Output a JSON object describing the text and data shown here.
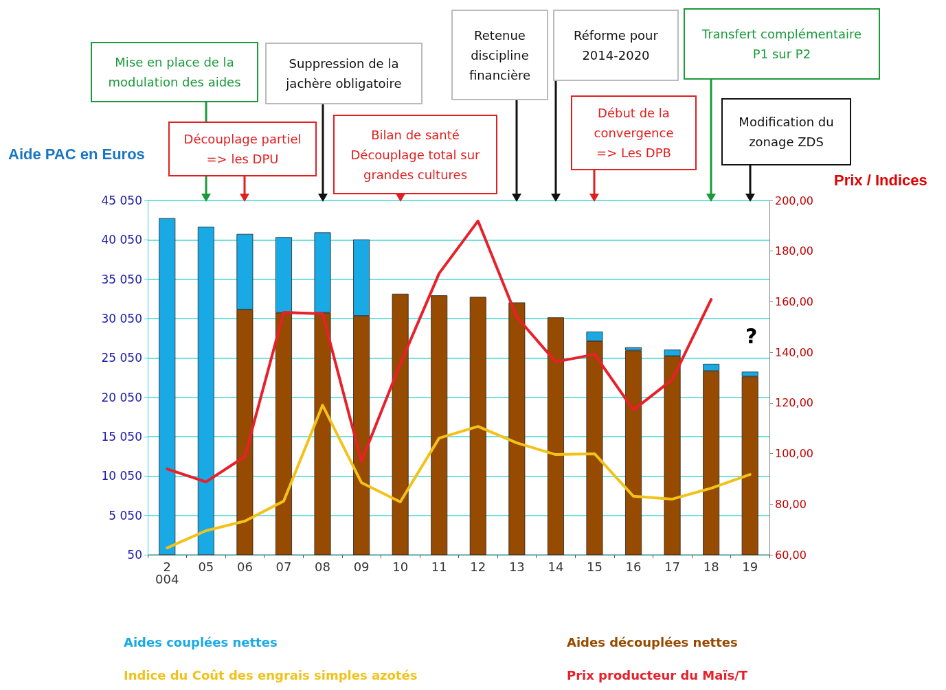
{
  "chart_data": {
    "type": "bar",
    "stacked": true,
    "ylabel": "Aide PAC en Euros",
    "y2label": "Prix / Indices",
    "categories": [
      "2 004",
      "05",
      "06",
      "07",
      "08",
      "09",
      "10",
      "11",
      "12",
      "13",
      "14",
      "15",
      "16",
      "17",
      "18",
      "19"
    ],
    "series": [
      {
        "name": "Aides découplées nettes",
        "color": "#964b00",
        "values": [
          null,
          null,
          31200,
          30800,
          30800,
          30400,
          33200,
          33000,
          32800,
          32100,
          30200,
          27200,
          26000,
          25300,
          23400,
          22700
        ]
      },
      {
        "name": "Aides couplées nettes",
        "color": "#19aae6",
        "values": [
          42800,
          41700,
          9600,
          9600,
          10200,
          9700,
          null,
          null,
          null,
          null,
          null,
          1200,
          400,
          800,
          900,
          600
        ]
      },
      {
        "name": "Prix producteur du Maïs/T",
        "type": "line",
        "axis": "y2",
        "color": "#e8202a",
        "values": [
          93.9,
          88.8,
          98.8,
          155.8,
          155.2,
          96.9,
          135.4,
          171.2,
          191.9,
          153.9,
          136.2,
          139.2,
          117.2,
          129.2,
          160.9,
          null
        ]
      },
      {
        "name": "Indice du Coût des engrais simples azotés",
        "type": "line",
        "axis": "y2",
        "color": "#f2c21b",
        "values": [
          62.7,
          69.5,
          73.3,
          81.2,
          119.1,
          88.5,
          80.9,
          106.1,
          110.7,
          104.2,
          99.6,
          99.9,
          83.1,
          82,
          86.3,
          91.7
        ]
      }
    ],
    "ylim": [
      50,
      45050
    ],
    "yticks": [
      {
        "value": 50,
        "label": "50"
      },
      {
        "value": 5050,
        "label": "5 050"
      },
      {
        "value": 10050,
        "label": "10 050"
      },
      {
        "value": 15050,
        "label": "15 050"
      },
      {
        "value": 20050,
        "label": "20 050"
      },
      {
        "value": 25050,
        "label": "25 050"
      },
      {
        "value": 30050,
        "label": "30 050"
      },
      {
        "value": 35050,
        "label": "35 050"
      },
      {
        "value": 40050,
        "label": "40 050"
      },
      {
        "value": 45050,
        "label": "45 050"
      }
    ],
    "y2lim": [
      60,
      200
    ],
    "y2ticks": [
      {
        "value": 60,
        "label": "60,00"
      },
      {
        "value": 80,
        "label": "80,00"
      },
      {
        "value": 100,
        "label": "100,00"
      },
      {
        "value": 120,
        "label": "120,00"
      },
      {
        "value": 140,
        "label": "140,00"
      },
      {
        "value": 160,
        "label": "160,00"
      },
      {
        "value": 180,
        "label": "180,00"
      },
      {
        "value": 200,
        "label": "200,00"
      }
    ],
    "grid": "y",
    "legend": "bottom",
    "marker": "none",
    "line_style": "solid",
    "annotations": [
      "Mise en place de la\nmodulation des aides",
      "Découplage partiel\n=> les DPU",
      "Suppression de la\njachère obligatoire",
      "Bilan de santé\nDécouplage total sur\ngrandes cultures",
      "Retenue\ndiscipline\nfinancière",
      "Réforme pour\n2014-2020",
      "Début de la\nconvergence\n=> Les DPB",
      "Transfert complémentaire\nP1 sur P2",
      "Modification du\nzonage ZDS",
      "?"
    ]
  }
}
